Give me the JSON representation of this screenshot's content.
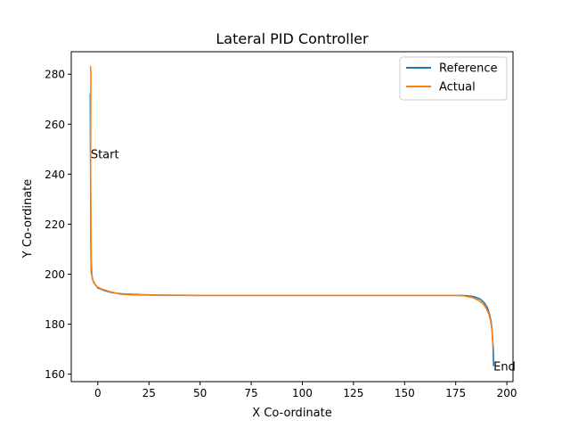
{
  "chart_data": {
    "type": "line",
    "title": "Lateral PID Controller",
    "xlabel": "X Co-ordinate",
    "ylabel": "Y Co-ordinate",
    "xlim": [
      -13,
      203
    ],
    "ylim": [
      157,
      289
    ],
    "x_ticks": [
      0,
      25,
      50,
      75,
      100,
      125,
      150,
      175,
      200
    ],
    "y_ticks": [
      160,
      180,
      200,
      220,
      240,
      260,
      280
    ],
    "grid": false,
    "legend_position": "top-right",
    "annotations": [
      {
        "text": "Start",
        "x": -3.5,
        "y": 248
      },
      {
        "text": "End",
        "x": 193.5,
        "y": 163
      }
    ],
    "series": [
      {
        "name": "Reference",
        "color": "#1f77b4",
        "points": [
          [
            -3.7,
            272
          ],
          [
            -3.6,
            250
          ],
          [
            -3.5,
            228
          ],
          [
            -3.4,
            210
          ],
          [
            -3.2,
            201
          ],
          [
            -2.6,
            198
          ],
          [
            -1.5,
            196
          ],
          [
            0,
            194.5
          ],
          [
            3,
            193.5
          ],
          [
            7,
            192.6
          ],
          [
            12,
            192.1
          ],
          [
            20,
            191.8
          ],
          [
            30,
            191.6
          ],
          [
            50,
            191.5
          ],
          [
            100,
            191.5
          ],
          [
            150,
            191.5
          ],
          [
            175,
            191.5
          ],
          [
            180,
            191.4
          ],
          [
            184,
            191
          ],
          [
            187,
            190
          ],
          [
            189,
            188.5
          ],
          [
            190.5,
            186.5
          ],
          [
            191.5,
            184
          ],
          [
            192.3,
            181
          ],
          [
            192.8,
            177
          ],
          [
            193.2,
            172
          ],
          [
            193.4,
            168
          ],
          [
            193.5,
            163.5
          ]
        ]
      },
      {
        "name": "Actual",
        "color": "#ff7f0e",
        "points": [
          [
            -3.6,
            283
          ],
          [
            -3.4,
            280
          ],
          [
            -3.5,
            262
          ],
          [
            -3.5,
            240
          ],
          [
            -3.4,
            220
          ],
          [
            -3.2,
            205
          ],
          [
            -2.8,
            199
          ],
          [
            -2,
            196.5
          ],
          [
            -0.5,
            195
          ],
          [
            2,
            194
          ],
          [
            6,
            193
          ],
          [
            11,
            192
          ],
          [
            18,
            191.7
          ],
          [
            28,
            191.6
          ],
          [
            50,
            191.5
          ],
          [
            100,
            191.5
          ],
          [
            150,
            191.5
          ],
          [
            175,
            191.5
          ],
          [
            179,
            191.3
          ],
          [
            183,
            190.7
          ],
          [
            186,
            189.6
          ],
          [
            188.5,
            188
          ],
          [
            190,
            186.2
          ],
          [
            191.2,
            184
          ],
          [
            192,
            181.5
          ],
          [
            192.7,
            178
          ],
          [
            193,
            174
          ],
          [
            193.2,
            171
          ]
        ]
      }
    ]
  }
}
